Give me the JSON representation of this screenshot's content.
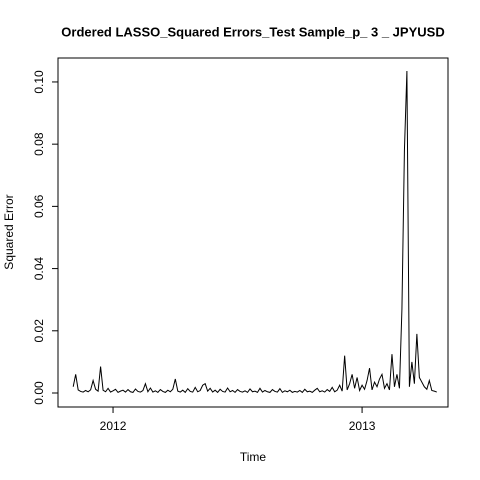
{
  "chart_data": {
    "type": "line",
    "title": "Ordered LASSO_Squared Errors_Test Sample_p_ 3 _ JPYUSD",
    "x_label": "Time",
    "y_label": "Squared Error",
    "x": [
      2011.84,
      2011.85,
      2011.86,
      2011.87,
      2011.88,
      2011.89,
      2011.9,
      2011.91,
      2011.92,
      2011.93,
      2011.94,
      2011.95,
      2011.96,
      2011.97,
      2011.98,
      2011.99,
      2012.0,
      2012.01,
      2012.02,
      2012.03,
      2012.04,
      2012.05,
      2012.06,
      2012.07,
      2012.08,
      2012.09,
      2012.1,
      2012.11,
      2012.12,
      2012.13,
      2012.14,
      2012.15,
      2012.16,
      2012.17,
      2012.18,
      2012.19,
      2012.2,
      2012.21,
      2012.22,
      2012.23,
      2012.24,
      2012.25,
      2012.26,
      2012.27,
      2012.28,
      2012.29,
      2012.3,
      2012.31,
      2012.32,
      2012.33,
      2012.34,
      2012.35,
      2012.36,
      2012.37,
      2012.38,
      2012.39,
      2012.4,
      2012.41,
      2012.42,
      2012.43,
      2012.44,
      2012.45,
      2012.46,
      2012.47,
      2012.48,
      2012.49,
      2012.5,
      2012.51,
      2012.52,
      2012.53,
      2012.54,
      2012.55,
      2012.56,
      2012.57,
      2012.58,
      2012.59,
      2012.6,
      2012.61,
      2012.62,
      2012.63,
      2012.64,
      2012.65,
      2012.66,
      2012.67,
      2012.68,
      2012.69,
      2012.7,
      2012.71,
      2012.72,
      2012.73,
      2012.74,
      2012.75,
      2012.76,
      2012.77,
      2012.78,
      2012.79,
      2012.8,
      2012.81,
      2012.82,
      2012.83,
      2012.84,
      2012.85,
      2012.86,
      2012.87,
      2012.88,
      2012.89,
      2012.9,
      2012.91,
      2012.92,
      2012.93,
      2012.94,
      2012.95,
      2012.96,
      2012.97,
      2012.98,
      2012.99,
      2013.0,
      2013.01,
      2013.02,
      2013.03,
      2013.04,
      2013.05,
      2013.06,
      2013.07,
      2013.08,
      2013.09,
      2013.1,
      2013.11,
      2013.12,
      2013.13,
      2013.14,
      2013.15,
      2013.16,
      2013.17,
      2013.18,
      2013.19,
      2013.2,
      2013.21,
      2013.22,
      2013.23,
      2013.24,
      2013.25,
      2013.26,
      2013.27,
      2013.28,
      2013.29,
      2013.3
    ],
    "series": [
      {
        "name": "Squared Error",
        "color": "#000000",
        "values": [
          0.002,
          0.006,
          0.001,
          0.0005,
          0.0003,
          0.0008,
          0.0004,
          0.001,
          0.004,
          0.0012,
          0.0006,
          0.0085,
          0.0009,
          0.0004,
          0.0015,
          0.0003,
          0.0007,
          0.0012,
          0.0002,
          0.0006,
          0.0009,
          0.0003,
          0.0011,
          0.0004,
          0.0002,
          0.0013,
          0.0005,
          0.0003,
          0.0008,
          0.003,
          0.0004,
          0.0016,
          0.0003,
          0.0007,
          0.0002,
          0.0011,
          0.0005,
          0.0002,
          0.0009,
          0.0004,
          0.0012,
          0.0045,
          0.0006,
          0.0003,
          0.0009,
          0.0002,
          0.0014,
          0.0005,
          0.0003,
          0.0018,
          0.0004,
          0.0008,
          0.0025,
          0.003,
          0.0006,
          0.0015,
          0.0003,
          0.0009,
          0.0002,
          0.0012,
          0.0005,
          0.0003,
          0.0016,
          0.0004,
          0.0008,
          0.0002,
          0.0011,
          0.0005,
          0.0003,
          0.0007,
          0.0002,
          0.0013,
          0.0004,
          0.0006,
          0.0002,
          0.0015,
          0.0003,
          0.0008,
          0.0004,
          0.0002,
          0.0011,
          0.0005,
          0.0003,
          0.0014,
          0.0002,
          0.0007,
          0.0004,
          0.0009,
          0.0002,
          0.0005,
          0.0003,
          0.0008,
          0.0002,
          0.0012,
          0.0004,
          0.0006,
          0.0002,
          0.0009,
          0.0015,
          0.0004,
          0.0007,
          0.0003,
          0.0011,
          0.0005,
          0.0018,
          0.0004,
          0.0009,
          0.0025,
          0.0006,
          0.012,
          0.001,
          0.003,
          0.006,
          0.0015,
          0.005,
          0.0008,
          0.0025,
          0.0012,
          0.004,
          0.008,
          0.001,
          0.0035,
          0.002,
          0.0045,
          0.006,
          0.0015,
          0.003,
          0.001,
          0.0125,
          0.002,
          0.006,
          0.0015,
          0.027,
          0.078,
          0.1035,
          0.002,
          0.01,
          0.003,
          0.019,
          0.005,
          0.0035,
          0.002,
          0.0012,
          0.004,
          0.0008,
          0.0006,
          0.0003
        ]
      }
    ],
    "xlim": [
      2011.779,
      2013.345
    ],
    "xticks": [
      2012,
      2013
    ],
    "ylim": [
      -0.0045,
      0.1077
    ],
    "yticks": [
      {
        "value": 0,
        "label": "0.00"
      },
      0.02,
      0.04,
      0.06,
      0.08,
      {
        "value": 0.1,
        "label": "0.10"
      }
    ],
    "grid": false
  }
}
